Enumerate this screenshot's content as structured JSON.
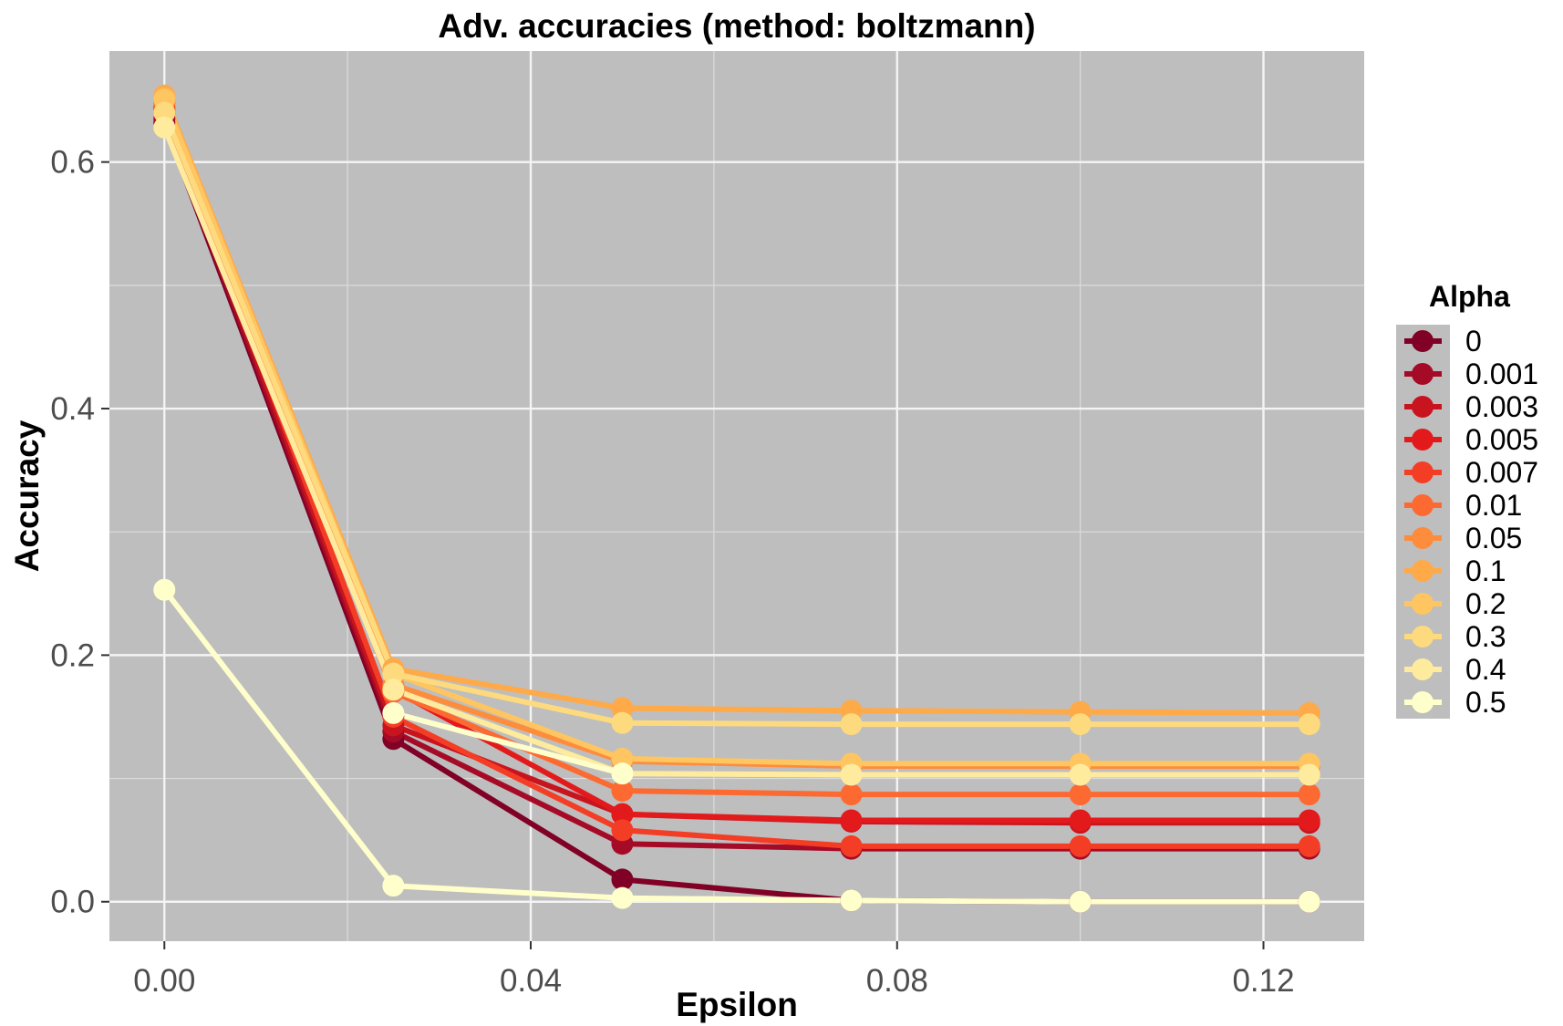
{
  "chart_data": {
    "type": "line",
    "title": "Adv. accuracies (method: boltzmann)",
    "xlabel": "Epsilon",
    "ylabel": "Accuracy",
    "xlim": [
      -0.006,
      0.131
    ],
    "ylim": [
      -0.032,
      0.69
    ],
    "x_ticks": [
      0.0,
      0.04,
      0.08,
      0.12
    ],
    "x_tick_labels": [
      "0.00",
      "0.04",
      "0.08",
      "0.12"
    ],
    "x_minor_ticks": [
      0.02,
      0.06,
      0.1
    ],
    "y_ticks": [
      0.0,
      0.2,
      0.4,
      0.6
    ],
    "y_tick_labels": [
      "0.0",
      "0.2",
      "0.4",
      "0.6"
    ],
    "y_minor_ticks": [
      0.1,
      0.3,
      0.5
    ],
    "grid": true,
    "background": "#bebebe",
    "legend": {
      "title": "Alpha",
      "position": "right"
    },
    "x": [
      0.0,
      0.025,
      0.05,
      0.075,
      0.1,
      0.125
    ],
    "series": [
      {
        "name": "0",
        "color": "#800026",
        "values": [
          0.632,
          0.132,
          0.018,
          0.001,
          0.0,
          0.0
        ]
      },
      {
        "name": "0.001",
        "color": "#A50B26",
        "values": [
          0.635,
          0.138,
          0.047,
          0.043,
          0.043,
          0.043
        ]
      },
      {
        "name": "0.003",
        "color": "#C8141F",
        "values": [
          0.64,
          0.143,
          0.071,
          0.065,
          0.064,
          0.064
        ]
      },
      {
        "name": "0.005",
        "color": "#E31A1C",
        "values": [
          0.643,
          0.172,
          0.071,
          0.066,
          0.066,
          0.066
        ]
      },
      {
        "name": "0.007",
        "color": "#F43D25",
        "values": [
          0.645,
          0.15,
          0.058,
          0.045,
          0.045,
          0.045
        ]
      },
      {
        "name": "0.01",
        "color": "#FC6A32",
        "values": [
          0.648,
          0.17,
          0.09,
          0.087,
          0.087,
          0.087
        ]
      },
      {
        "name": "0.05",
        "color": "#FD8D3C",
        "values": [
          0.65,
          0.176,
          0.114,
          0.11,
          0.11,
          0.11
        ]
      },
      {
        "name": "0.1",
        "color": "#FEAA49",
        "values": [
          0.654,
          0.189,
          0.157,
          0.155,
          0.154,
          0.153
        ]
      },
      {
        "name": "0.2",
        "color": "#FEC561",
        "values": [
          0.651,
          0.185,
          0.116,
          0.112,
          0.112,
          0.112
        ]
      },
      {
        "name": "0.3",
        "color": "#FEDA7E",
        "values": [
          0.64,
          0.185,
          0.145,
          0.144,
          0.144,
          0.144
        ]
      },
      {
        "name": "0.4",
        "color": "#FFEB9E",
        "values": [
          0.628,
          0.172,
          0.104,
          0.103,
          0.103,
          0.103
        ]
      },
      {
        "name": "0.5",
        "color": "#FFFFCC",
        "values": [
          0.253,
          0.013,
          0.003,
          0.001,
          0.0,
          0.0
        ]
      }
    ],
    "extra_segments": [
      {
        "series": "0.5",
        "color": "#FFFFCC",
        "points": [
          [
            0.025,
            0.153
          ],
          [
            0.05,
            0.104
          ]
        ]
      }
    ]
  }
}
